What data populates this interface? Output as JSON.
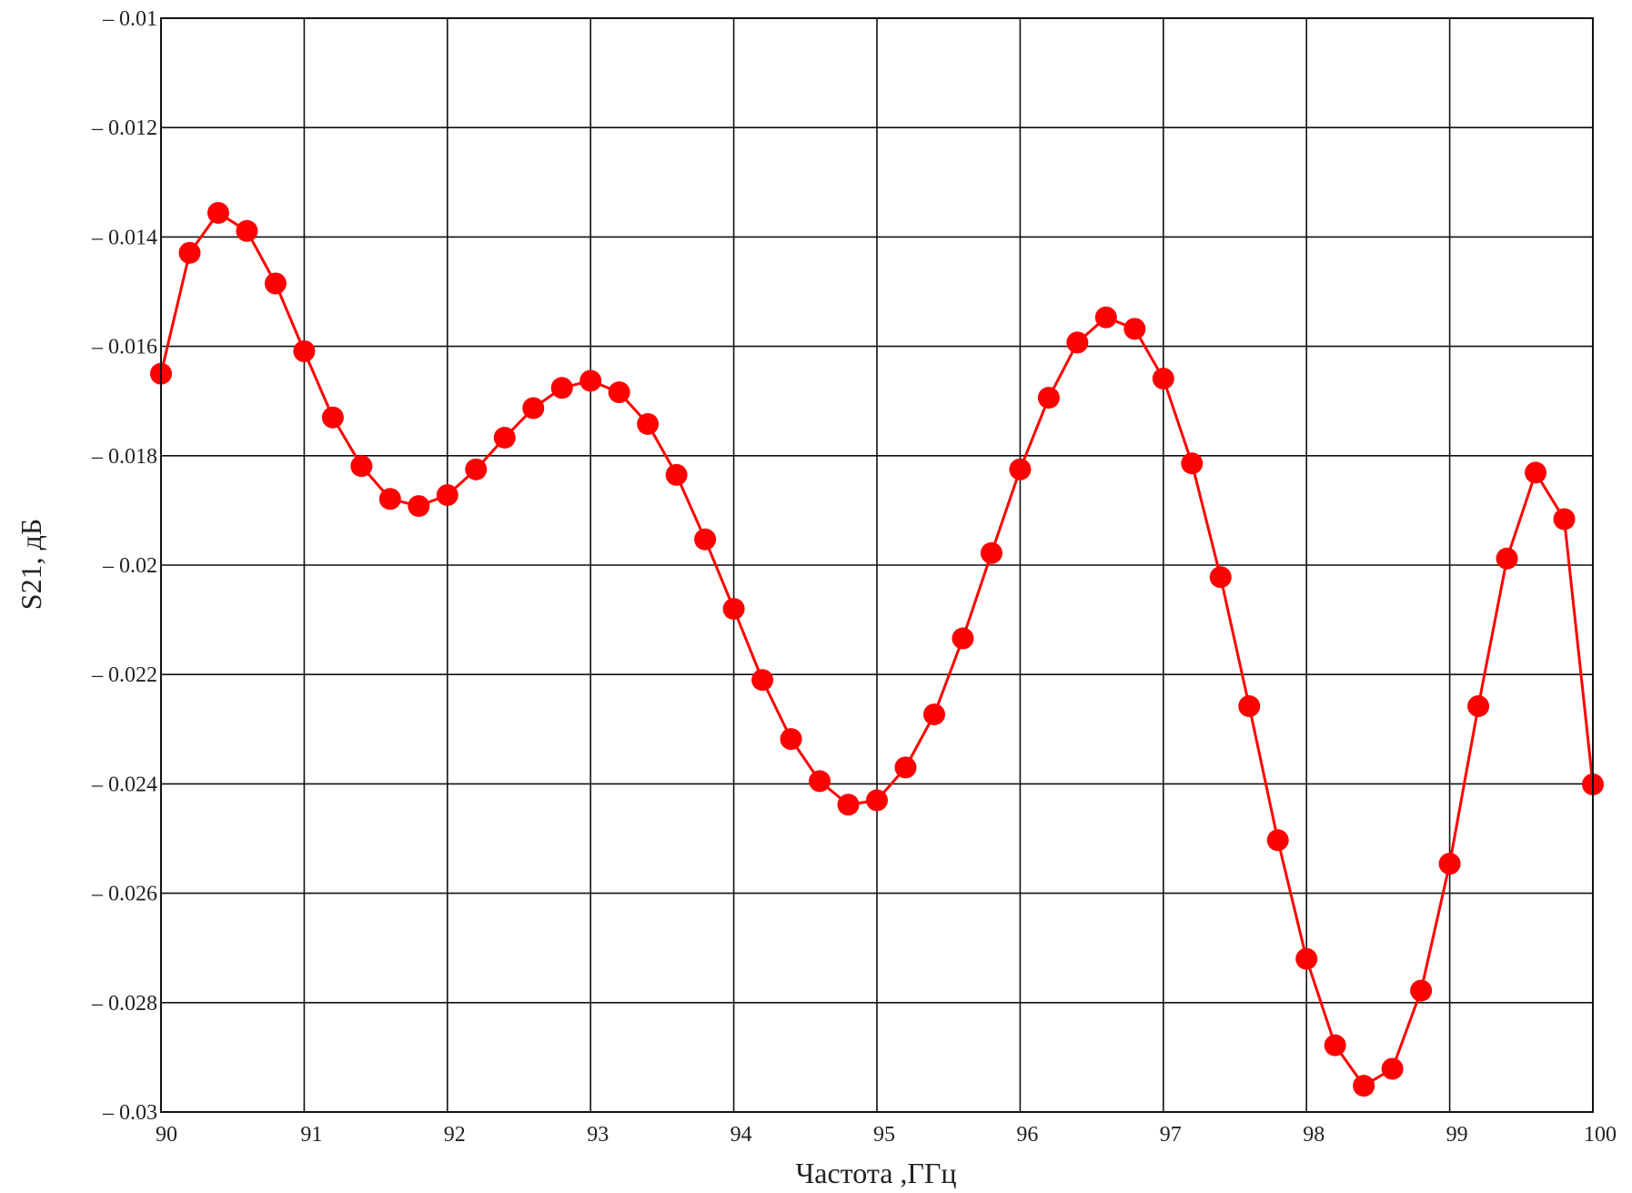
{
  "chart_data": {
    "type": "line",
    "title": "",
    "xlabel": "Частота ,ГГц",
    "ylabel": "S21, дБ",
    "xlim": [
      90,
      100
    ],
    "ylim": [
      -0.03,
      -0.01
    ],
    "x_ticks": [
      90,
      91,
      92,
      93,
      94,
      95,
      96,
      97,
      98,
      99,
      100
    ],
    "x_tick_labels": [
      "90",
      "91",
      "92",
      "93",
      "94",
      "95",
      "96",
      "97",
      "98",
      "99",
      "100"
    ],
    "y_ticks": [
      -0.01,
      -0.012,
      -0.014,
      -0.016,
      -0.018,
      -0.02,
      -0.022,
      -0.024,
      -0.026,
      -0.028,
      -0.03
    ],
    "y_tick_labels": [
      "– 0.01",
      "– 0.012",
      "– 0.014",
      "– 0.016",
      "– 0.018",
      "– 0.02",
      "– 0.022",
      "– 0.024",
      "– 0.026",
      "– 0.028",
      "– 0.03"
    ],
    "grid": true,
    "series": [
      {
        "color": "#ff0000",
        "marker": "circle",
        "x": [
          90.0,
          90.2,
          90.4,
          90.6,
          90.8,
          91.0,
          91.2,
          91.4,
          91.6,
          91.8,
          92.0,
          92.2,
          92.4,
          92.6,
          92.8,
          93.0,
          93.2,
          93.4,
          93.6,
          93.8,
          94.0,
          94.2,
          94.4,
          94.6,
          94.8,
          95.0,
          95.2,
          95.4,
          95.6,
          95.8,
          96.0,
          96.2,
          96.4,
          96.6,
          96.8,
          97.0,
          97.2,
          97.4,
          97.6,
          97.8,
          98.0,
          98.2,
          98.4,
          98.6,
          98.8,
          99.0,
          99.2,
          99.4,
          99.6,
          99.8,
          100.0
        ],
        "y": [
          -0.0165,
          -0.01429,
          -0.01356,
          -0.01389,
          -0.01485,
          -0.01609,
          -0.0173,
          -0.01819,
          -0.01879,
          -0.01892,
          -0.01872,
          -0.01825,
          -0.01767,
          -0.01713,
          -0.01676,
          -0.01663,
          -0.01684,
          -0.01742,
          -0.01835,
          -0.01953,
          -0.0208,
          -0.0221,
          -0.02318,
          -0.02395,
          -0.02438,
          -0.0243,
          -0.0237,
          -0.02273,
          -0.02134,
          -0.01978,
          -0.01825,
          -0.01694,
          -0.01593,
          -0.01547,
          -0.01568,
          -0.01659,
          -0.01814,
          -0.02022,
          -0.02258,
          -0.02503,
          -0.0272,
          -0.02878,
          -0.02952,
          -0.02921,
          -0.02778,
          -0.02546,
          -0.02258,
          -0.01988,
          -0.01831,
          -0.01916,
          -0.02401
        ]
      }
    ]
  }
}
